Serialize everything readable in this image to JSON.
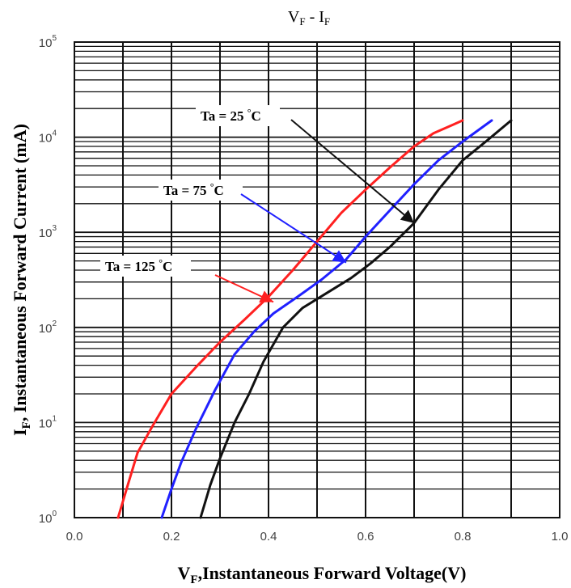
{
  "chart_data": {
    "type": "line",
    "title": "VF - IF",
    "title_main": "V",
    "title_sub1": "F",
    "title_mid": " - I",
    "title_sub2": "F",
    "xlabel": "VF,Instantaneous Forward Voltage(V)",
    "xlabel_main": "V",
    "xlabel_sub": "F",
    "xlabel_rest": ",Instantaneous Forward Voltage(V)",
    "ylabel": "IF, Instantaneous Forward Current (mA)",
    "ylabel_main": "I",
    "ylabel_sub": "F",
    "ylabel_rest": ", Instantaneous Forward Current (mA)",
    "xlim": [
      0.0,
      1.0
    ],
    "ylim": [
      1,
      100000
    ],
    "y_scale": "log",
    "grid": true,
    "x_ticks": [
      "0.0",
      "0.2",
      "0.4",
      "0.6",
      "0.8",
      "1.0"
    ],
    "x_tick_values": [
      0.0,
      0.2,
      0.4,
      0.6,
      0.8,
      1.0
    ],
    "y_ticks": [
      {
        "value": 1,
        "base": "10",
        "exp": "0"
      },
      {
        "value": 10,
        "base": "10",
        "exp": "1"
      },
      {
        "value": 100,
        "base": "10",
        "exp": "2"
      },
      {
        "value": 1000,
        "base": "10",
        "exp": "3"
      },
      {
        "value": 10000,
        "base": "10",
        "exp": "4"
      },
      {
        "value": 100000,
        "base": "10",
        "exp": "5"
      }
    ],
    "series": [
      {
        "name": "Ta = 125 °C",
        "label_main": "Ta = 125 ",
        "label_deg": "°",
        "label_unit": "C",
        "color": "#ff2020",
        "x": [
          0.09,
          0.11,
          0.13,
          0.16,
          0.2,
          0.25,
          0.3,
          0.35,
          0.4,
          0.45,
          0.5,
          0.55,
          0.6,
          0.65,
          0.7,
          0.74,
          0.78,
          0.8
        ],
        "y": [
          1,
          2.2,
          4.8,
          9,
          20,
          38,
          70,
          120,
          210,
          400,
          800,
          1600,
          2800,
          4800,
          8000,
          11000,
          13500,
          15000
        ]
      },
      {
        "name": "Ta = 75 °C",
        "label_main": "Ta = 75 ",
        "label_deg": "°",
        "label_unit": "C",
        "color": "#2020ff",
        "x": [
          0.18,
          0.2,
          0.22,
          0.25,
          0.29,
          0.33,
          0.37,
          0.41,
          0.46,
          0.51,
          0.56,
          0.6,
          0.65,
          0.7,
          0.75,
          0.8,
          0.86
        ],
        "y": [
          1,
          2,
          3.8,
          8.5,
          22,
          52,
          90,
          140,
          210,
          320,
          520,
          900,
          1700,
          3200,
          5700,
          9000,
          15000
        ]
      },
      {
        "name": "Ta = 25 °C",
        "label_main": "Ta = 25 ",
        "label_deg": "°",
        "label_unit": "C",
        "color": "#111111",
        "x": [
          0.26,
          0.28,
          0.3,
          0.33,
          0.36,
          0.39,
          0.43,
          0.47,
          0.52,
          0.57,
          0.61,
          0.65,
          0.7,
          0.75,
          0.8,
          0.85,
          0.9
        ],
        "y": [
          1,
          2.2,
          4.2,
          10,
          20,
          44,
          100,
          160,
          230,
          330,
          470,
          700,
          1250,
          2800,
          5700,
          9200,
          15000
        ]
      }
    ],
    "annotations": [
      {
        "series": 0,
        "arrow_to_x": 0.41,
        "arrow_to_y": 185
      },
      {
        "series": 1,
        "arrow_to_x": 0.56,
        "arrow_to_y": 480
      },
      {
        "series": 2,
        "arrow_to_x": 0.7,
        "arrow_to_y": 1250
      }
    ]
  }
}
